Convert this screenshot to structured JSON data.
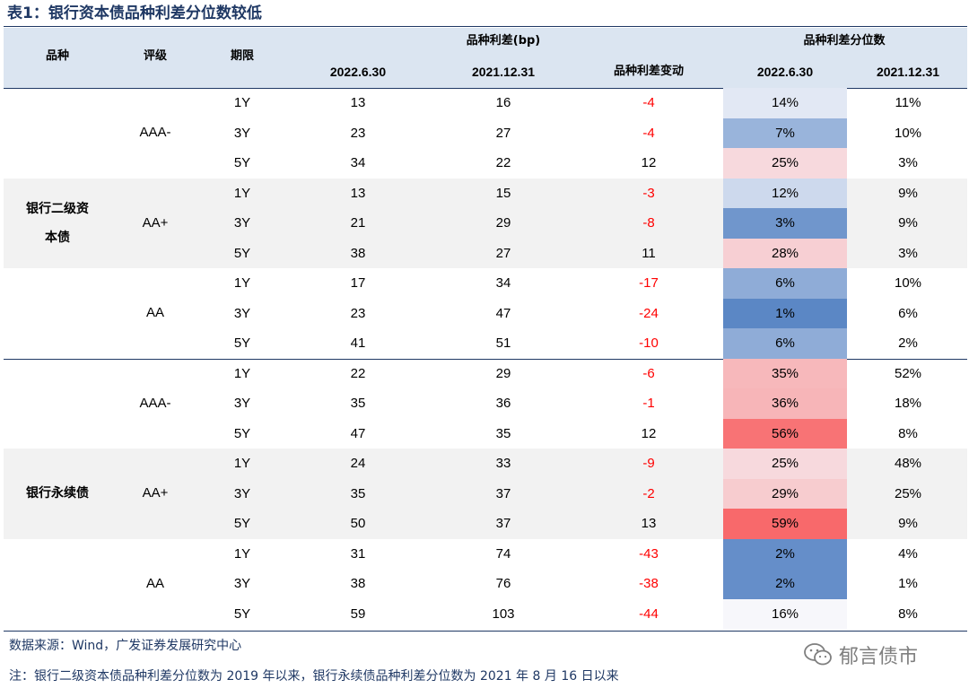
{
  "title": "表1：银行资本债品种利差分位数较低",
  "header": {
    "variety": "品种",
    "rating": "评级",
    "term": "期限",
    "spread_group": "品种利差(bp)",
    "spread_d1": "2022.6.30",
    "spread_d2": "2021.12.31",
    "spread_change": "品种利差变动",
    "pct_group": "品种利差分位数",
    "pct_d1": "2022.6.30",
    "pct_d2": "2021.12.31"
  },
  "groups": [
    {
      "name": "银行二级资本债",
      "name_line1": "银行二级资",
      "name_line2": "本债",
      "ratings": [
        {
          "rating": "AAA-",
          "rows": [
            {
              "term": "1Y",
              "s1": "13",
              "s2": "16",
              "chg": "-4",
              "p1": "14%",
              "p1v": 14,
              "p2": "11%"
            },
            {
              "term": "3Y",
              "s1": "23",
              "s2": "27",
              "chg": "-4",
              "p1": "7%",
              "p1v": 7,
              "p2": "10%"
            },
            {
              "term": "5Y",
              "s1": "34",
              "s2": "22",
              "chg": "12",
              "p1": "25%",
              "p1v": 25,
              "p2": "3%"
            }
          ]
        },
        {
          "rating": "AA+",
          "rows": [
            {
              "term": "1Y",
              "s1": "13",
              "s2": "15",
              "chg": "-3",
              "p1": "12%",
              "p1v": 12,
              "p2": "9%"
            },
            {
              "term": "3Y",
              "s1": "21",
              "s2": "29",
              "chg": "-8",
              "p1": "3%",
              "p1v": 3,
              "p2": "9%"
            },
            {
              "term": "5Y",
              "s1": "38",
              "s2": "27",
              "chg": "11",
              "p1": "28%",
              "p1v": 28,
              "p2": "3%"
            }
          ]
        },
        {
          "rating": "AA",
          "rows": [
            {
              "term": "1Y",
              "s1": "17",
              "s2": "34",
              "chg": "-17",
              "p1": "6%",
              "p1v": 6,
              "p2": "10%"
            },
            {
              "term": "3Y",
              "s1": "23",
              "s2": "47",
              "chg": "-24",
              "p1": "1%",
              "p1v": 1,
              "p2": "6%"
            },
            {
              "term": "5Y",
              "s1": "41",
              "s2": "51",
              "chg": "-10",
              "p1": "6%",
              "p1v": 6,
              "p2": "2%"
            }
          ]
        }
      ]
    },
    {
      "name": "银行永续债",
      "name_line1": "银行永续债",
      "name_line2": "",
      "ratings": [
        {
          "rating": "AAA-",
          "rows": [
            {
              "term": "1Y",
              "s1": "22",
              "s2": "29",
              "chg": "-6",
              "p1": "35%",
              "p1v": 35,
              "p2": "52%"
            },
            {
              "term": "3Y",
              "s1": "35",
              "s2": "36",
              "chg": "-1",
              "p1": "36%",
              "p1v": 36,
              "p2": "18%"
            },
            {
              "term": "5Y",
              "s1": "47",
              "s2": "35",
              "chg": "12",
              "p1": "56%",
              "p1v": 56,
              "p2": "8%"
            }
          ]
        },
        {
          "rating": "AA+",
          "rows": [
            {
              "term": "1Y",
              "s1": "24",
              "s2": "33",
              "chg": "-9",
              "p1": "25%",
              "p1v": 25,
              "p2": "48%"
            },
            {
              "term": "3Y",
              "s1": "35",
              "s2": "37",
              "chg": "-2",
              "p1": "29%",
              "p1v": 29,
              "p2": "25%"
            },
            {
              "term": "5Y",
              "s1": "50",
              "s2": "37",
              "chg": "13",
              "p1": "59%",
              "p1v": 59,
              "p2": "9%"
            }
          ]
        },
        {
          "rating": "AA",
          "rows": [
            {
              "term": "1Y",
              "s1": "31",
              "s2": "74",
              "chg": "-43",
              "p1": "2%",
              "p1v": 2,
              "p2": "4%"
            },
            {
              "term": "3Y",
              "s1": "38",
              "s2": "76",
              "chg": "-38",
              "p1": "2%",
              "p1v": 2,
              "p2": "1%"
            },
            {
              "term": "5Y",
              "s1": "59",
              "s2": "103",
              "chg": "-44",
              "p1": "16%",
              "p1v": 16,
              "p2": "8%"
            }
          ]
        }
      ]
    }
  ],
  "source": "数据来源：Wind，广发证券发展研究中心",
  "note": "注：银行二级资本债品种利差分位数为 2019 年以来，银行永续债品种利差分位数为 2021 年 8 月 16 日以来",
  "watermark": "郁言债市",
  "colors": {
    "title": "#1f3864",
    "header_bg": "#dbe5f1",
    "band_gray": "#f2f2f2",
    "negative": "#ff0000",
    "heat_low": "#5b87c5",
    "heat_mid": "#f7f7fb",
    "heat_high": "#f8696b"
  }
}
